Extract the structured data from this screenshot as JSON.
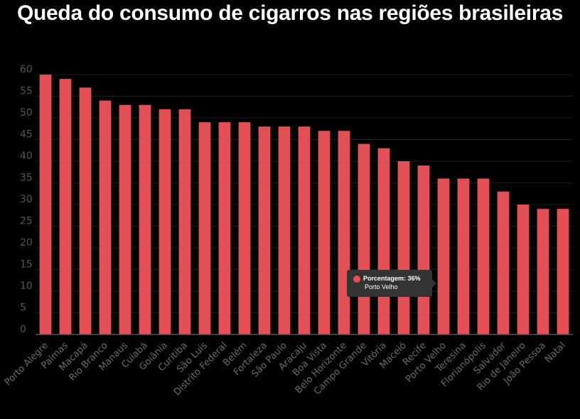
{
  "chart_data": {
    "type": "bar",
    "title": "Queda do consumo de cigarros nas regiões brasileiras",
    "xlabel": "",
    "ylabel": "",
    "ylim": [
      0,
      60
    ],
    "yticks": [
      0,
      5,
      10,
      15,
      20,
      25,
      30,
      35,
      40,
      45,
      50,
      55,
      60
    ],
    "grid": true,
    "bar_color": "#e05055",
    "categories": [
      "Porto Alegre",
      "Palmas",
      "Macapá",
      "Rio Branco",
      "Manaus",
      "Cuiabá",
      "Goiânia",
      "Curitiba",
      "São Luís",
      "Distrito Federal",
      "Belém",
      "Fortaleza",
      "São Paulo",
      "Aracaju",
      "Boa Vista",
      "Belo Horizonte",
      "Campo Grande",
      "Vitória",
      "Maceió",
      "Recife",
      "Porto Velho",
      "Teresina",
      "Florianópolis",
      "Salvador",
      "Rio de Janeiro",
      "João Pessoa",
      "Natal"
    ],
    "values": [
      60,
      59,
      57,
      54,
      53,
      53,
      52,
      52,
      49,
      49,
      49,
      48,
      48,
      48,
      47,
      47,
      44,
      43,
      40,
      39,
      36,
      36,
      36,
      33,
      30,
      29,
      29
    ]
  },
  "tooltip": {
    "series_label": "Porcentagem: 36%",
    "category": "Porto Velho"
  }
}
